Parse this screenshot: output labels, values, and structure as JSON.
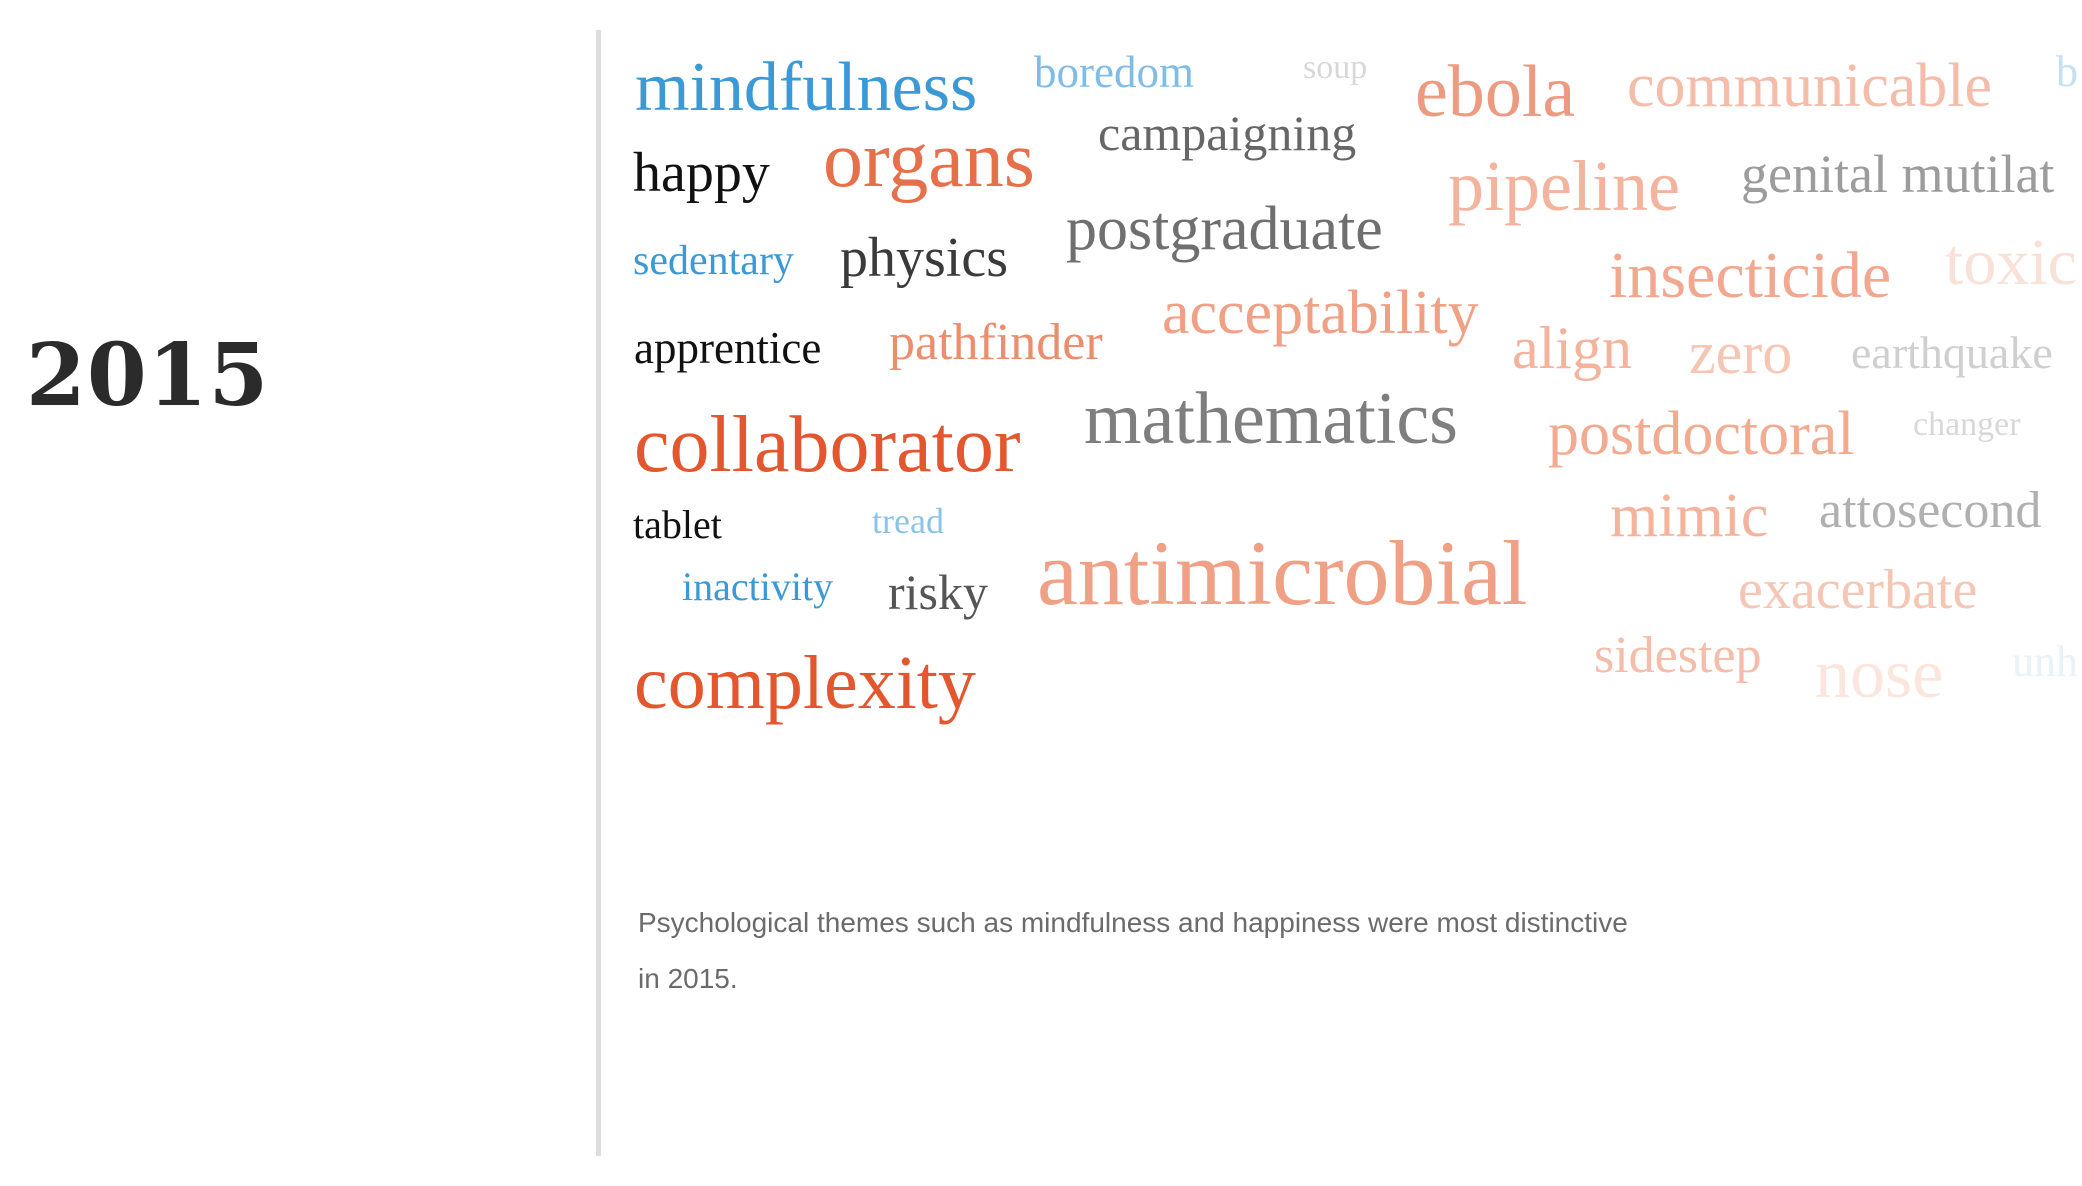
{
  "year": "2015",
  "words": {
    "mindfulness": "mindfulness",
    "boredom": "boredom",
    "soup": "soup",
    "ebola": "ebola",
    "communicable": "communicable",
    "b": "b",
    "happy": "happy",
    "organs": "organs",
    "campaigning": "campaigning",
    "pipeline": "pipeline",
    "genital": "genital mutilat",
    "sedentary": "sedentary",
    "physics": "physics",
    "postgraduate": "postgraduate",
    "insecticide": "insecticide",
    "toxic": "toxic",
    "apprentice": "apprentice",
    "pathfinder": "pathfinder",
    "acceptability": "acceptability",
    "align": "align",
    "zero": "zero",
    "earthquake": "earthquake",
    "collaborator": "collaborator",
    "mathematics": "mathematics",
    "postdoctoral": "postdoctoral",
    "changer": "changer",
    "tablet": "tablet",
    "tread": "tread",
    "mimic": "mimic",
    "attosecond": "attosecond",
    "inactivity": "inactivity",
    "risky": "risky",
    "antimicrobial": "antimicrobial",
    "exacerbate": "exacerbate",
    "sidestep": "sidestep",
    "nose": "nose",
    "unh": "unh",
    "complexity": "complexity"
  },
  "colors": {
    "blue": "#3b9ad6",
    "orange": "#e3572e",
    "dark": "#111111",
    "gray": "#7e7e7e"
  },
  "caption": "Psychological themes such as mindfulness and happiness were most distinctive in 2015."
}
